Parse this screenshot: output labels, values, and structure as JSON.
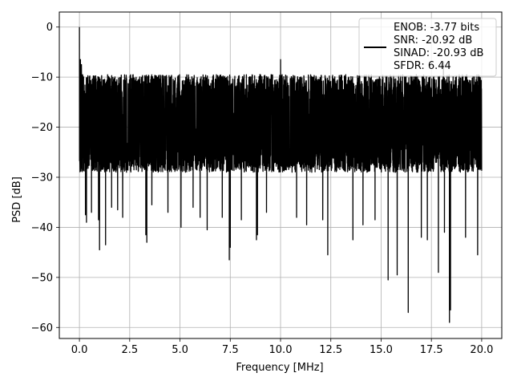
{
  "chart_data": {
    "type": "line",
    "title": "",
    "xlabel": "Frequency [MHz]",
    "ylabel": "PSD [dB]",
    "xlim": [
      -1.0,
      21.0
    ],
    "ylim": [
      -62.2,
      3.0
    ],
    "xticks": [
      0.0,
      2.5,
      5.0,
      7.5,
      10.0,
      12.5,
      15.0,
      17.5,
      20.0
    ],
    "xtick_labels": [
      "0.0",
      "2.5",
      "5.0",
      "7.5",
      "10.0",
      "12.5",
      "15.0",
      "17.5",
      "20.0"
    ],
    "yticks": [
      0,
      -10,
      -20,
      -30,
      -40,
      -50,
      -60
    ],
    "ytick_labels": [
      "0",
      "−10",
      "−20",
      "−30",
      "−40",
      "−50",
      "−60"
    ],
    "grid": true,
    "legend_position": "top-right",
    "legend": {
      "lines": [
        "ENOB: -3.77 bits",
        "SNR: -20.92 dB",
        "SINAD: -20.93 dB",
        "SFDR: 6.44"
      ]
    },
    "series": [
      {
        "color": "#000000",
        "noise_band": {
          "x_start": 0.0,
          "x_end": 20.0,
          "upper_typical": -9.5,
          "lower_typical": -29.0,
          "median": -19.5
        },
        "peaks": [
          {
            "x": 0.0,
            "y": 0.0
          },
          {
            "x": 0.05,
            "y": -6.5
          },
          {
            "x": 0.1,
            "y": -7.5
          },
          {
            "x": 10.0,
            "y": -6.5
          },
          {
            "x": 18.1,
            "y": -7.0
          }
        ],
        "dips": [
          {
            "x": 0.3,
            "y": -37.5
          },
          {
            "x": 0.35,
            "y": -39.0
          },
          {
            "x": 0.6,
            "y": -37.0
          },
          {
            "x": 0.95,
            "y": -38.5
          },
          {
            "x": 1.0,
            "y": -44.5
          },
          {
            "x": 1.3,
            "y": -43.5
          },
          {
            "x": 1.6,
            "y": -36.0
          },
          {
            "x": 1.9,
            "y": -36.5
          },
          {
            "x": 2.15,
            "y": -38.0
          },
          {
            "x": 3.3,
            "y": -41.5
          },
          {
            "x": 3.35,
            "y": -43.0
          },
          {
            "x": 3.6,
            "y": -35.5
          },
          {
            "x": 4.4,
            "y": -37.0
          },
          {
            "x": 5.05,
            "y": -40.0
          },
          {
            "x": 5.65,
            "y": -36.0
          },
          {
            "x": 6.0,
            "y": -38.0
          },
          {
            "x": 6.35,
            "y": -40.5
          },
          {
            "x": 7.1,
            "y": -38.0
          },
          {
            "x": 7.45,
            "y": -46.5
          },
          {
            "x": 7.5,
            "y": -44.0
          },
          {
            "x": 8.05,
            "y": -38.5
          },
          {
            "x": 8.8,
            "y": -42.5
          },
          {
            "x": 8.85,
            "y": -41.5
          },
          {
            "x": 9.3,
            "y": -37.0
          },
          {
            "x": 10.8,
            "y": -38.0
          },
          {
            "x": 11.3,
            "y": -39.5
          },
          {
            "x": 12.1,
            "y": -38.5
          },
          {
            "x": 12.35,
            "y": -45.5
          },
          {
            "x": 13.6,
            "y": -42.5
          },
          {
            "x": 14.1,
            "y": -39.5
          },
          {
            "x": 14.7,
            "y": -38.5
          },
          {
            "x": 15.35,
            "y": -50.5
          },
          {
            "x": 15.8,
            "y": -49.5
          },
          {
            "x": 16.35,
            "y": -57.0
          },
          {
            "x": 17.0,
            "y": -42.0
          },
          {
            "x": 17.3,
            "y": -42.5
          },
          {
            "x": 17.85,
            "y": -49.0
          },
          {
            "x": 18.15,
            "y": -41.0
          },
          {
            "x": 18.4,
            "y": -59.0
          },
          {
            "x": 18.45,
            "y": -56.5
          },
          {
            "x": 19.2,
            "y": -42.0
          },
          {
            "x": 19.8,
            "y": -45.5
          }
        ]
      }
    ]
  }
}
